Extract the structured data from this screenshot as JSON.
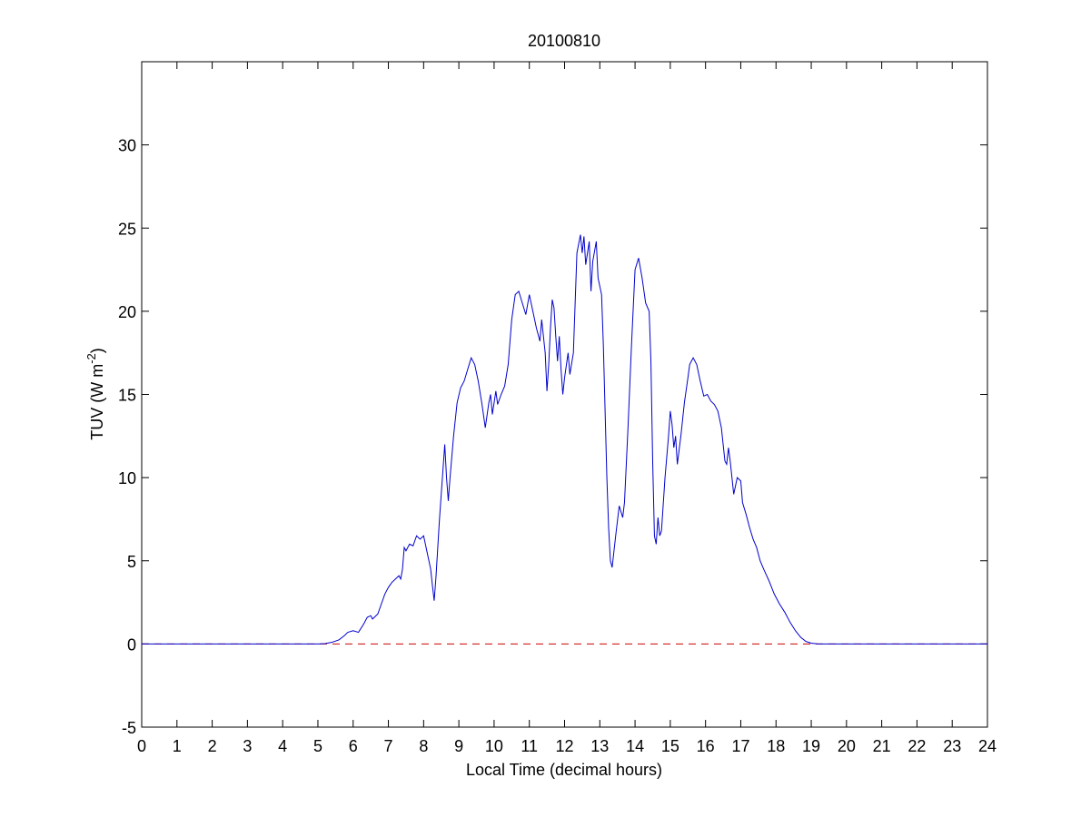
{
  "chart_data": {
    "type": "line",
    "title": "20100810",
    "xlabel": "Local Time (decimal hours)",
    "ylabel_main": "TUV (W m",
    "ylabel_sup": "-2",
    "ylabel_close": ")",
    "xlim": [
      0,
      24
    ],
    "ylim": [
      -5,
      35
    ],
    "xticks": [
      0,
      1,
      2,
      3,
      4,
      5,
      6,
      7,
      8,
      9,
      10,
      11,
      12,
      13,
      14,
      15,
      16,
      17,
      18,
      19,
      20,
      21,
      22,
      23,
      24
    ],
    "yticks": [
      -5,
      0,
      5,
      10,
      15,
      20,
      25,
      30
    ],
    "grid": false,
    "colors": {
      "series": "#0000cc",
      "reference": "#cc0000"
    },
    "reference_line": {
      "y": 0,
      "style": "dashed"
    },
    "series": [
      {
        "values": [
          [
            0,
            0
          ],
          [
            5.0,
            0
          ],
          [
            5.2,
            0.02
          ],
          [
            5.4,
            0.1
          ],
          [
            5.6,
            0.25
          ],
          [
            5.75,
            0.5
          ],
          [
            5.85,
            0.7
          ],
          [
            6.0,
            0.8
          ],
          [
            6.15,
            0.7
          ],
          [
            6.3,
            1.2
          ],
          [
            6.4,
            1.6
          ],
          [
            6.5,
            1.7
          ],
          [
            6.55,
            1.5
          ],
          [
            6.7,
            1.8
          ],
          [
            6.8,
            2.4
          ],
          [
            6.9,
            3.0
          ],
          [
            7.0,
            3.4
          ],
          [
            7.1,
            3.7
          ],
          [
            7.2,
            3.9
          ],
          [
            7.3,
            4.1
          ],
          [
            7.35,
            3.9
          ],
          [
            7.4,
            4.5
          ],
          [
            7.45,
            5.8
          ],
          [
            7.5,
            5.6
          ],
          [
            7.6,
            6.0
          ],
          [
            7.7,
            5.9
          ],
          [
            7.8,
            6.5
          ],
          [
            7.9,
            6.3
          ],
          [
            8.0,
            6.5
          ],
          [
            8.05,
            6.0
          ],
          [
            8.1,
            5.5
          ],
          [
            8.2,
            4.5
          ],
          [
            8.25,
            3.5
          ],
          [
            8.3,
            2.6
          ],
          [
            8.35,
            4.0
          ],
          [
            8.45,
            7.5
          ],
          [
            8.55,
            10.5
          ],
          [
            8.6,
            12.0
          ],
          [
            8.65,
            10.0
          ],
          [
            8.7,
            8.6
          ],
          [
            8.75,
            10.0
          ],
          [
            8.85,
            12.5
          ],
          [
            8.95,
            14.5
          ],
          [
            9.05,
            15.4
          ],
          [
            9.15,
            15.8
          ],
          [
            9.25,
            16.5
          ],
          [
            9.35,
            17.2
          ],
          [
            9.45,
            16.8
          ],
          [
            9.55,
            15.8
          ],
          [
            9.65,
            14.5
          ],
          [
            9.75,
            13.0
          ],
          [
            9.85,
            14.5
          ],
          [
            9.9,
            15.0
          ],
          [
            9.95,
            13.8
          ],
          [
            10.05,
            15.2
          ],
          [
            10.1,
            14.4
          ],
          [
            10.2,
            15.0
          ],
          [
            10.3,
            15.5
          ],
          [
            10.4,
            16.8
          ],
          [
            10.5,
            19.5
          ],
          [
            10.6,
            21.0
          ],
          [
            10.7,
            21.2
          ],
          [
            10.8,
            20.5
          ],
          [
            10.9,
            19.8
          ],
          [
            11.0,
            21.0
          ],
          [
            11.1,
            20.0
          ],
          [
            11.2,
            19.0
          ],
          [
            11.3,
            18.2
          ],
          [
            11.35,
            19.5
          ],
          [
            11.45,
            17.5
          ],
          [
            11.5,
            15.2
          ],
          [
            11.55,
            16.8
          ],
          [
            11.6,
            19.0
          ],
          [
            11.65,
            20.7
          ],
          [
            11.7,
            20.2
          ],
          [
            11.75,
            18.5
          ],
          [
            11.8,
            17.0
          ],
          [
            11.85,
            18.5
          ],
          [
            11.9,
            16.5
          ],
          [
            11.95,
            15.0
          ],
          [
            12.0,
            16.0
          ],
          [
            12.1,
            17.5
          ],
          [
            12.15,
            16.2
          ],
          [
            12.25,
            17.5
          ],
          [
            12.35,
            23.5
          ],
          [
            12.45,
            24.6
          ],
          [
            12.5,
            23.5
          ],
          [
            12.55,
            24.5
          ],
          [
            12.6,
            22.8
          ],
          [
            12.7,
            24.2
          ],
          [
            12.75,
            21.2
          ],
          [
            12.8,
            23.0
          ],
          [
            12.9,
            24.2
          ],
          [
            12.95,
            22.0
          ],
          [
            13.05,
            21.0
          ],
          [
            13.1,
            18.0
          ],
          [
            13.15,
            14.0
          ],
          [
            13.2,
            10.0
          ],
          [
            13.25,
            7.0
          ],
          [
            13.3,
            5.0
          ],
          [
            13.35,
            4.6
          ],
          [
            13.45,
            6.5
          ],
          [
            13.55,
            8.3
          ],
          [
            13.65,
            7.6
          ],
          [
            13.7,
            8.5
          ],
          [
            13.8,
            13.0
          ],
          [
            13.9,
            18.0
          ],
          [
            14.0,
            22.5
          ],
          [
            14.1,
            23.2
          ],
          [
            14.2,
            22.0
          ],
          [
            14.3,
            20.5
          ],
          [
            14.4,
            20.0
          ],
          [
            14.45,
            17.0
          ],
          [
            14.5,
            11.0
          ],
          [
            14.55,
            6.5
          ],
          [
            14.6,
            6.0
          ],
          [
            14.65,
            7.6
          ],
          [
            14.7,
            6.5
          ],
          [
            14.75,
            6.8
          ],
          [
            14.85,
            10.0
          ],
          [
            14.95,
            12.5
          ],
          [
            15.0,
            14.0
          ],
          [
            15.05,
            13.2
          ],
          [
            15.1,
            11.8
          ],
          [
            15.15,
            12.5
          ],
          [
            15.2,
            10.8
          ],
          [
            15.3,
            12.5
          ],
          [
            15.4,
            14.5
          ],
          [
            15.5,
            16.0
          ],
          [
            15.55,
            16.8
          ],
          [
            15.65,
            17.2
          ],
          [
            15.75,
            16.8
          ],
          [
            15.85,
            15.8
          ],
          [
            15.95,
            14.9
          ],
          [
            16.05,
            15.0
          ],
          [
            16.15,
            14.6
          ],
          [
            16.25,
            14.4
          ],
          [
            16.35,
            14.0
          ],
          [
            16.45,
            13.0
          ],
          [
            16.55,
            11.0
          ],
          [
            16.6,
            10.8
          ],
          [
            16.65,
            11.8
          ],
          [
            16.7,
            11.0
          ],
          [
            16.8,
            9.0
          ],
          [
            16.85,
            9.5
          ],
          [
            16.9,
            10.0
          ],
          [
            17.0,
            9.8
          ],
          [
            17.05,
            8.5
          ],
          [
            17.15,
            7.8
          ],
          [
            17.25,
            7.0
          ],
          [
            17.35,
            6.3
          ],
          [
            17.45,
            5.8
          ],
          [
            17.55,
            5.0
          ],
          [
            17.65,
            4.5
          ],
          [
            17.8,
            3.8
          ],
          [
            17.95,
            3.0
          ],
          [
            18.1,
            2.4
          ],
          [
            18.25,
            1.9
          ],
          [
            18.4,
            1.3
          ],
          [
            18.55,
            0.8
          ],
          [
            18.7,
            0.4
          ],
          [
            18.85,
            0.15
          ],
          [
            19.0,
            0.05
          ],
          [
            19.2,
            0.0
          ],
          [
            19.5,
            0
          ],
          [
            24,
            0
          ]
        ]
      }
    ]
  }
}
